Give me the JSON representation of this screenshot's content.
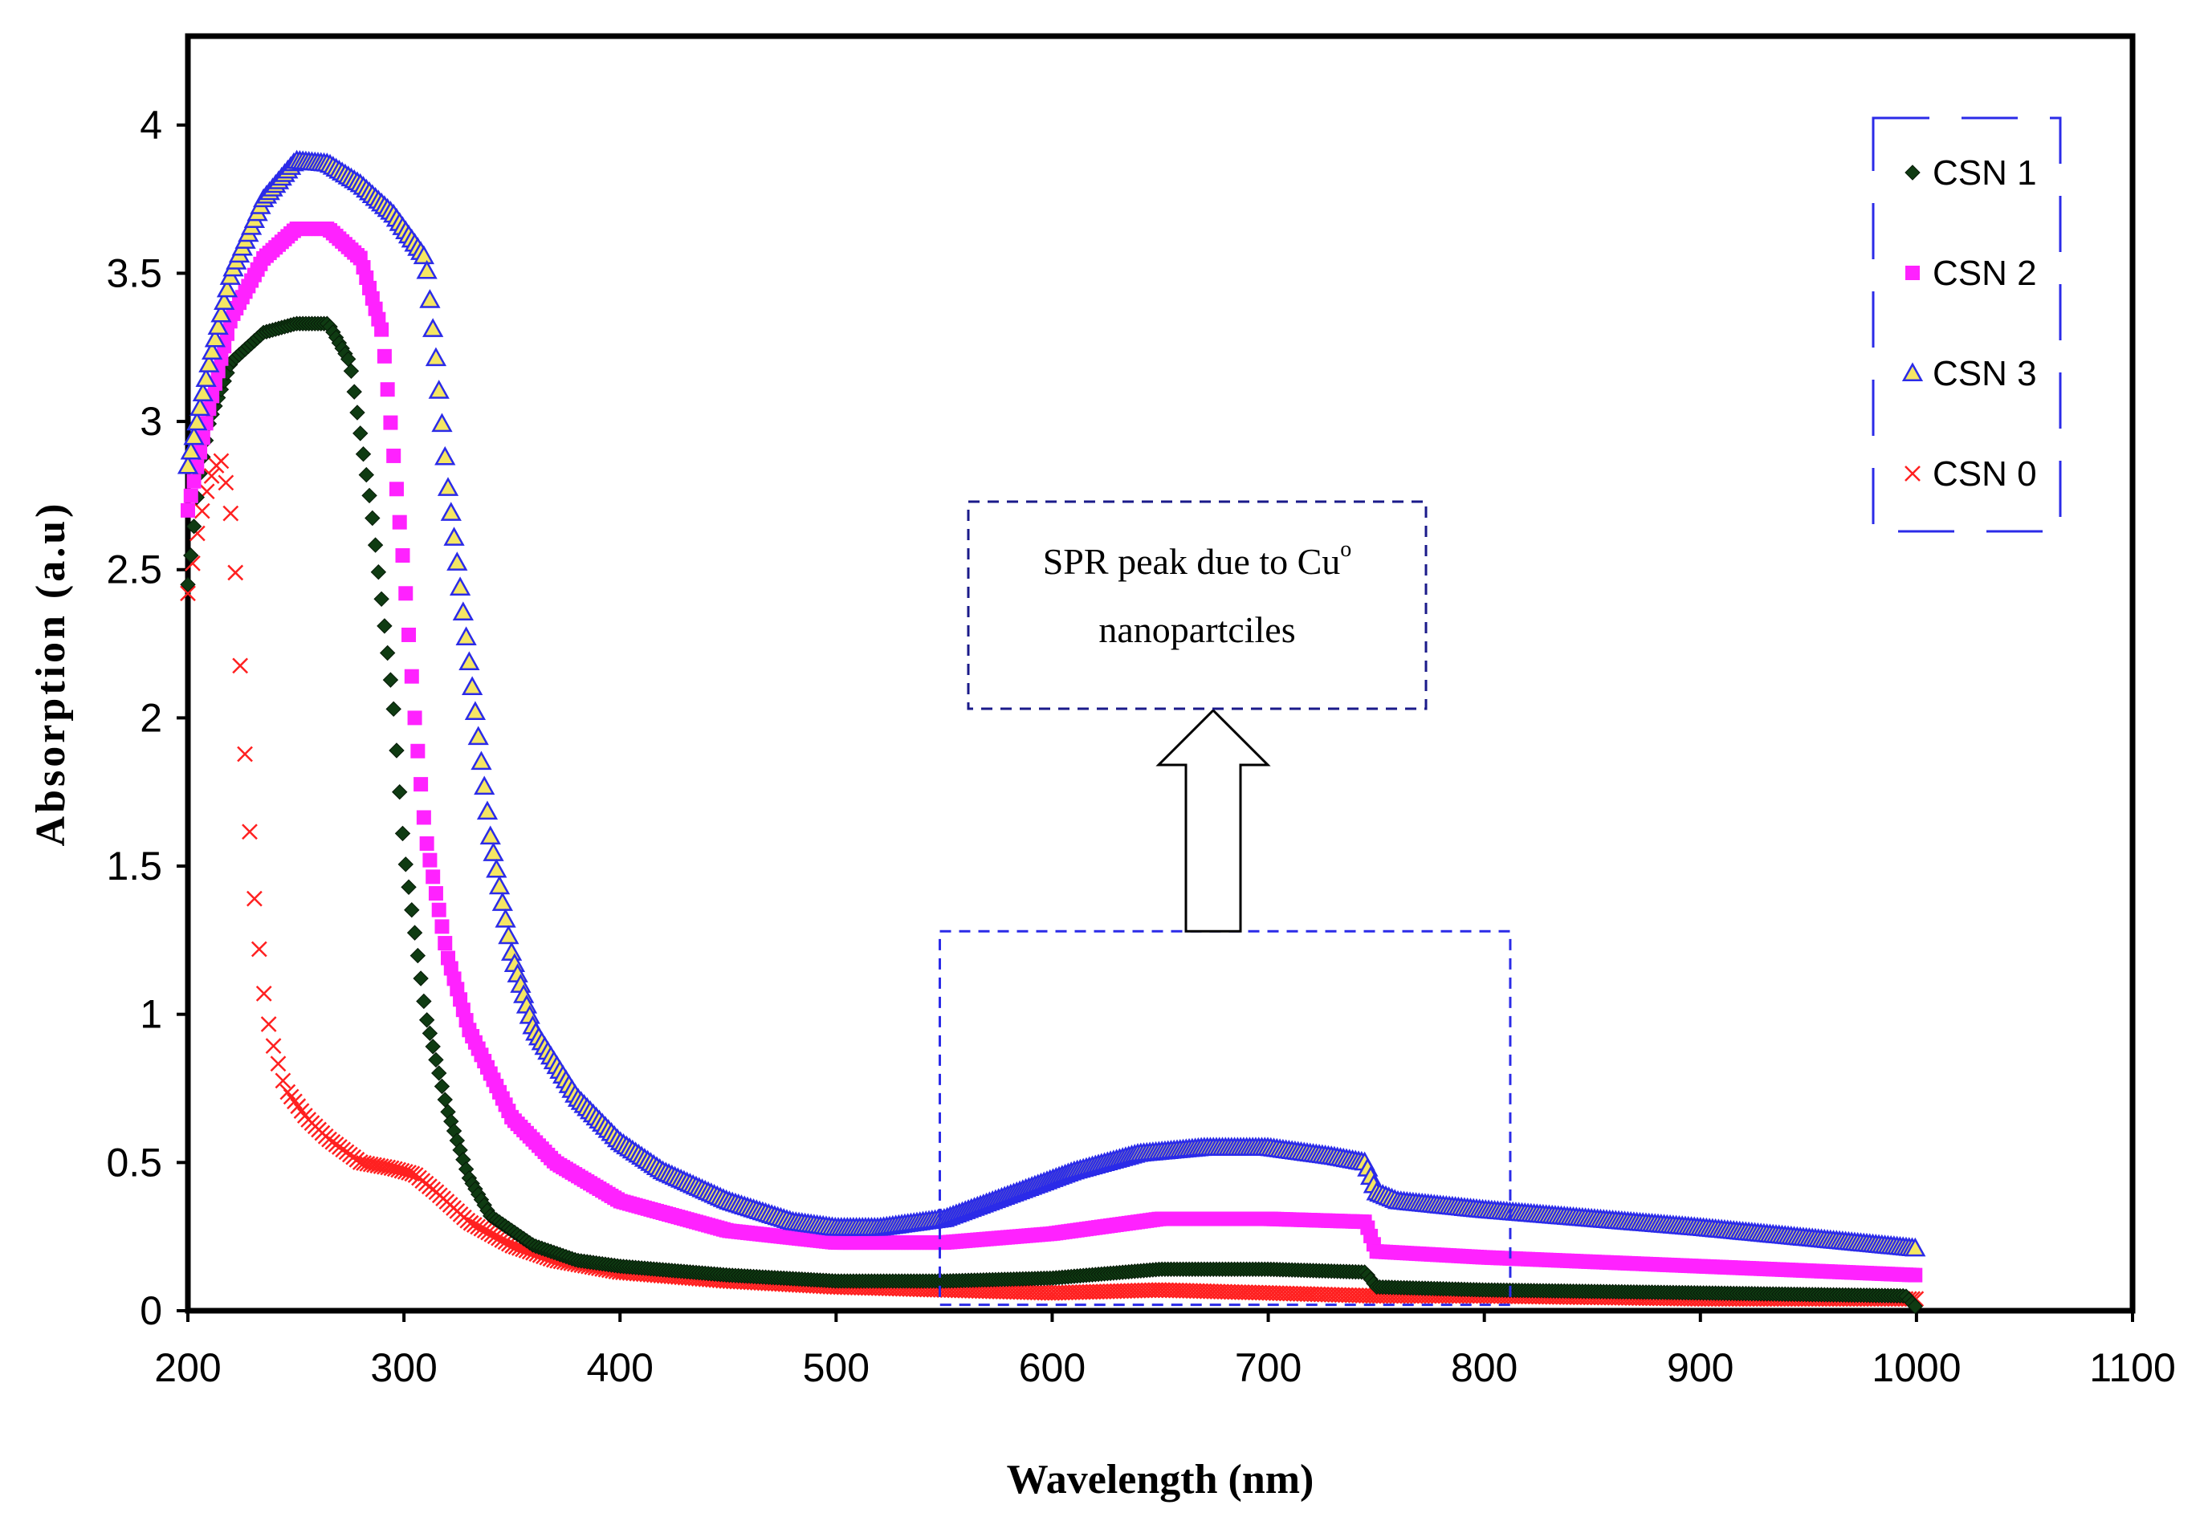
{
  "chart_data": {
    "type": "scatter",
    "xlabel": "Wavelength (nm)",
    "ylabel": "Absorption (a.u)",
    "xlim": [
      200,
      1100
    ],
    "ylim": [
      0,
      4.3
    ],
    "xticks": [
      200,
      300,
      400,
      500,
      600,
      700,
      800,
      900,
      1000,
      1100
    ],
    "yticks": [
      0,
      0.5,
      1,
      1.5,
      2,
      2.5,
      3,
      3.5,
      4
    ],
    "grid": false,
    "legend_position": "top-right",
    "series": [
      {
        "name": "CSN 1",
        "marker": "diamond",
        "color": "#0f3b12",
        "points": [
          [
            200,
            2.45
          ],
          [
            205,
            2.8
          ],
          [
            210,
            3.0
          ],
          [
            220,
            3.2
          ],
          [
            235,
            3.3
          ],
          [
            250,
            3.33
          ],
          [
            265,
            3.33
          ],
          [
            275,
            3.2
          ],
          [
            285,
            2.7
          ],
          [
            295,
            2.05
          ],
          [
            300,
            1.55
          ],
          [
            310,
            1.0
          ],
          [
            320,
            0.68
          ],
          [
            330,
            0.45
          ],
          [
            340,
            0.32
          ],
          [
            360,
            0.22
          ],
          [
            380,
            0.17
          ],
          [
            400,
            0.15
          ],
          [
            450,
            0.12
          ],
          [
            500,
            0.1
          ],
          [
            550,
            0.1
          ],
          [
            600,
            0.11
          ],
          [
            650,
            0.14
          ],
          [
            700,
            0.14
          ],
          [
            745,
            0.13
          ],
          [
            750,
            0.08
          ],
          [
            800,
            0.07
          ],
          [
            900,
            0.06
          ],
          [
            995,
            0.05
          ],
          [
            1000,
            0.01
          ]
        ]
      },
      {
        "name": "CSN 2",
        "marker": "square",
        "color": "#ff22ff",
        "points": [
          [
            200,
            2.7
          ],
          [
            210,
            3.05
          ],
          [
            220,
            3.35
          ],
          [
            235,
            3.55
          ],
          [
            250,
            3.65
          ],
          [
            265,
            3.65
          ],
          [
            280,
            3.55
          ],
          [
            290,
            3.3
          ],
          [
            300,
            2.5
          ],
          [
            305,
            2.0
          ],
          [
            310,
            1.6
          ],
          [
            320,
            1.2
          ],
          [
            330,
            0.95
          ],
          [
            340,
            0.8
          ],
          [
            350,
            0.65
          ],
          [
            370,
            0.5
          ],
          [
            400,
            0.37
          ],
          [
            450,
            0.27
          ],
          [
            500,
            0.23
          ],
          [
            550,
            0.23
          ],
          [
            600,
            0.26
          ],
          [
            650,
            0.31
          ],
          [
            700,
            0.31
          ],
          [
            745,
            0.3
          ],
          [
            750,
            0.2
          ],
          [
            800,
            0.18
          ],
          [
            900,
            0.15
          ],
          [
            1000,
            0.12
          ]
        ]
      },
      {
        "name": "CSN 3",
        "marker": "triangle",
        "color": "#2b2be8",
        "points": [
          [
            200,
            2.85
          ],
          [
            210,
            3.2
          ],
          [
            220,
            3.5
          ],
          [
            235,
            3.75
          ],
          [
            250,
            3.88
          ],
          [
            265,
            3.87
          ],
          [
            280,
            3.8
          ],
          [
            295,
            3.7
          ],
          [
            310,
            3.55
          ],
          [
            315,
            3.2
          ],
          [
            320,
            2.8
          ],
          [
            330,
            2.2
          ],
          [
            340,
            1.6
          ],
          [
            350,
            1.2
          ],
          [
            360,
            0.95
          ],
          [
            380,
            0.72
          ],
          [
            400,
            0.57
          ],
          [
            420,
            0.47
          ],
          [
            450,
            0.37
          ],
          [
            480,
            0.3
          ],
          [
            500,
            0.28
          ],
          [
            520,
            0.28
          ],
          [
            550,
            0.31
          ],
          [
            580,
            0.39
          ],
          [
            610,
            0.47
          ],
          [
            640,
            0.53
          ],
          [
            670,
            0.55
          ],
          [
            700,
            0.55
          ],
          [
            730,
            0.52
          ],
          [
            745,
            0.5
          ],
          [
            750,
            0.4
          ],
          [
            760,
            0.37
          ],
          [
            800,
            0.34
          ],
          [
            900,
            0.28
          ],
          [
            1000,
            0.21
          ]
        ]
      },
      {
        "name": "CSN 0",
        "marker": "x",
        "color": "#ff2020",
        "points": [
          [
            200,
            2.42
          ],
          [
            205,
            2.65
          ],
          [
            210,
            2.8
          ],
          [
            215,
            2.88
          ],
          [
            218,
            2.78
          ],
          [
            221,
            2.63
          ],
          [
            223,
            2.35
          ],
          [
            225,
            2.06
          ],
          [
            227,
            1.8
          ],
          [
            229,
            1.57
          ],
          [
            231,
            1.37
          ],
          [
            233,
            1.22
          ],
          [
            235,
            1.08
          ],
          [
            237,
            0.98
          ],
          [
            240,
            0.88
          ],
          [
            245,
            0.75
          ],
          [
            255,
            0.65
          ],
          [
            265,
            0.58
          ],
          [
            280,
            0.5
          ],
          [
            295,
            0.48
          ],
          [
            305,
            0.46
          ],
          [
            315,
            0.4
          ],
          [
            330,
            0.3
          ],
          [
            350,
            0.22
          ],
          [
            370,
            0.17
          ],
          [
            400,
            0.13
          ],
          [
            450,
            0.1
          ],
          [
            500,
            0.08
          ],
          [
            550,
            0.07
          ],
          [
            600,
            0.06
          ],
          [
            650,
            0.07
          ],
          [
            700,
            0.06
          ],
          [
            750,
            0.05
          ],
          [
            800,
            0.05
          ],
          [
            900,
            0.04
          ],
          [
            1000,
            0.04
          ]
        ]
      }
    ],
    "annotation": {
      "text_line1": "SPR peak due to Cu",
      "superscript": "o",
      "text_line2": "nanopartciles",
      "region_x": [
        548,
        812
      ],
      "region_y": [
        0.02,
        1.28
      ]
    }
  }
}
